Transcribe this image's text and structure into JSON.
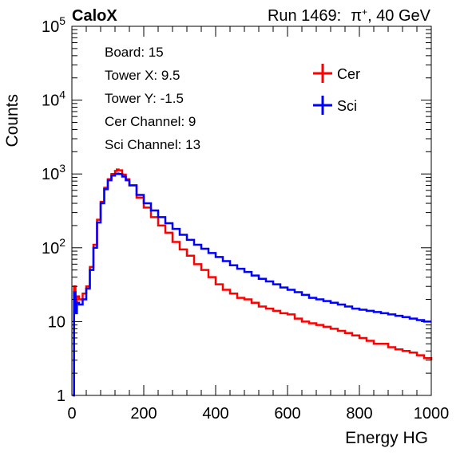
{
  "header": {
    "experiment": "CaloX",
    "run": "Run 1469:",
    "particle": "π",
    "particle_sup": "+",
    "energy": ", 40 GeV"
  },
  "info_box": {
    "board": "Board: 15",
    "tower_x": "Tower X: 9.5",
    "tower_y": "Tower Y: -1.5",
    "cer_channel": "Cer Channel: 9",
    "sci_channel": "Sci Channel: 13"
  },
  "colors": {
    "cer": "#ff0000",
    "sci": "#0000ff",
    "axis": "#000000"
  },
  "chart_data": {
    "type": "line",
    "xlabel": "Energy HG",
    "ylabel": "Counts",
    "xlim": [
      0,
      1000
    ],
    "ylim": [
      1,
      100000
    ],
    "y_scale": "log",
    "x_ticks": [
      "0",
      "200",
      "400",
      "600",
      "800",
      "1000"
    ],
    "y_tick_labels": {
      "base": "10",
      "one": "1",
      "ten": "10",
      "exps": [
        "2",
        "3",
        "4",
        "5"
      ]
    },
    "grid": false,
    "legend": {
      "placement": "top-right",
      "entries": [
        "Cer",
        "Sci"
      ]
    },
    "series": [
      {
        "name": "Cer",
        "color": "#ff0000",
        "x": [
          2,
          6,
          10,
          14,
          20,
          30,
          40,
          50,
          60,
          70,
          80,
          90,
          100,
          110,
          120,
          125,
          130,
          140,
          150,
          160,
          180,
          200,
          220,
          240,
          260,
          280,
          300,
          320,
          340,
          360,
          380,
          400,
          420,
          440,
          460,
          480,
          500,
          520,
          540,
          560,
          580,
          600,
          620,
          640,
          660,
          680,
          700,
          720,
          740,
          760,
          780,
          800,
          820,
          840,
          860,
          880,
          900,
          920,
          940,
          960,
          980,
          1000
        ],
        "y": [
          1,
          30,
          15,
          22,
          20,
          24,
          30,
          55,
          110,
          240,
          420,
          650,
          850,
          1000,
          1100,
          1150,
          1120,
          980,
          850,
          700,
          480,
          350,
          260,
          200,
          160,
          120,
          95,
          78,
          60,
          50,
          40,
          32,
          27,
          24,
          21,
          20,
          18,
          16,
          15,
          14,
          13,
          12.5,
          11,
          10,
          9.5,
          9,
          8.5,
          8,
          7.5,
          7,
          6.5,
          6,
          5.5,
          5,
          5,
          4.5,
          4.2,
          4,
          3.8,
          3.5,
          3.2,
          3
        ]
      },
      {
        "name": "Sci",
        "color": "#0000ff",
        "x": [
          2,
          6,
          10,
          14,
          20,
          30,
          40,
          50,
          60,
          70,
          80,
          90,
          100,
          110,
          120,
          125,
          130,
          140,
          150,
          160,
          180,
          200,
          220,
          240,
          260,
          280,
          300,
          320,
          340,
          360,
          380,
          400,
          420,
          440,
          460,
          480,
          500,
          520,
          540,
          560,
          580,
          600,
          620,
          640,
          660,
          680,
          700,
          720,
          740,
          760,
          780,
          800,
          820,
          840,
          860,
          880,
          900,
          920,
          940,
          960,
          980,
          1000
        ],
        "y": [
          1,
          25,
          13,
          18,
          17,
          20,
          28,
          50,
          100,
          220,
          400,
          620,
          820,
          950,
          1000,
          1010,
          1000,
          920,
          820,
          700,
          520,
          400,
          320,
          260,
          215,
          180,
          150,
          128,
          110,
          97,
          85,
          75,
          66,
          58,
          52,
          47,
          42,
          38,
          35,
          32,
          29,
          27,
          25,
          23,
          21,
          20,
          19,
          18,
          17,
          16,
          15,
          14.5,
          14,
          13.5,
          13,
          12.5,
          12,
          11.5,
          11,
          10.5,
          10,
          10
        ]
      }
    ]
  }
}
